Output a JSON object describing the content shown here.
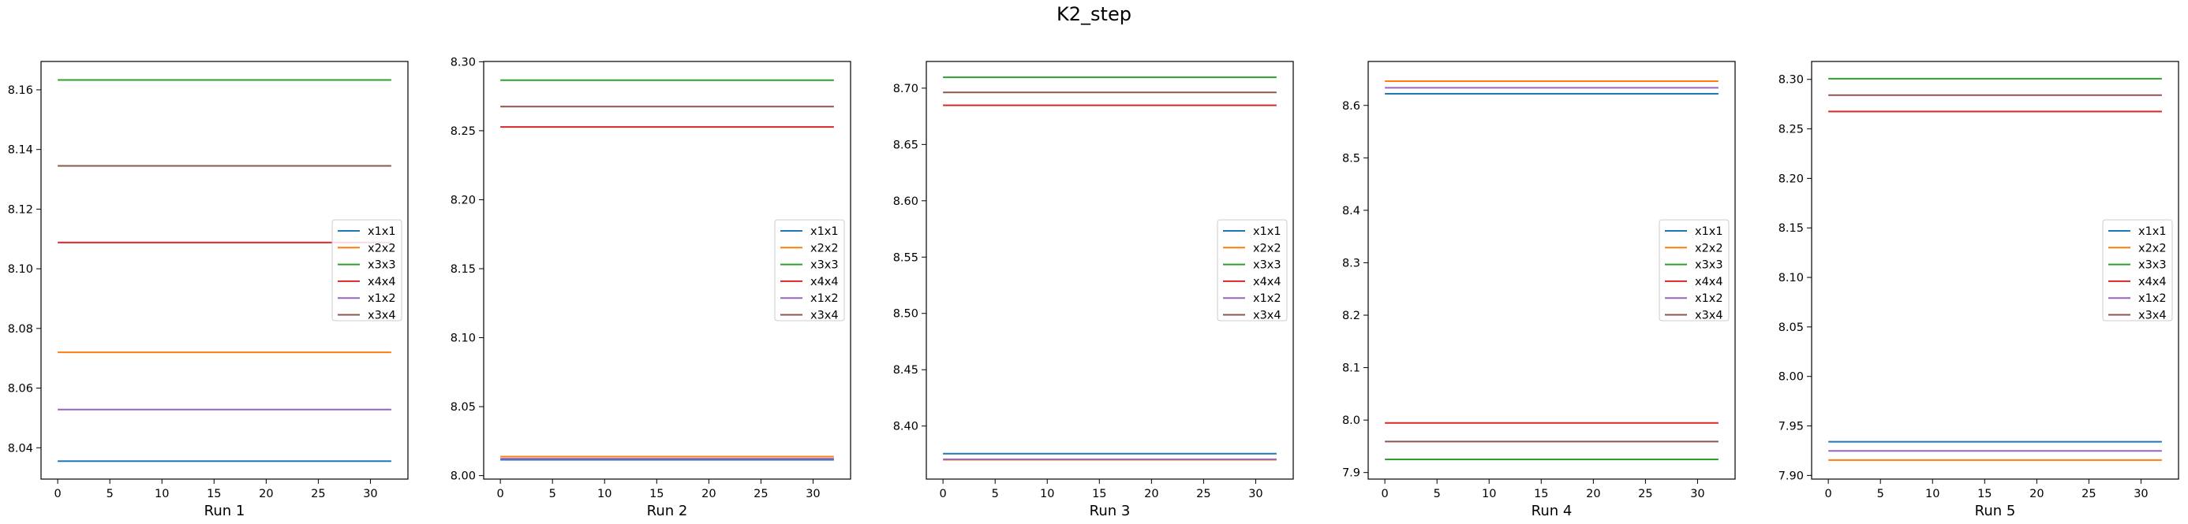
{
  "figure": {
    "title": "K2_step"
  },
  "legend_placement": "center-right",
  "colors": {
    "x1x1": "#1f77b4",
    "x2x2": "#ff7f0e",
    "x3x3": "#2ca02c",
    "x4x4": "#d62728",
    "x1x2": "#9467bd",
    "x3x4": "#8c564b"
  },
  "chart_data": [
    {
      "type": "line",
      "xlabel": "Run 1",
      "x": [
        0,
        32
      ],
      "xticks": [
        0,
        5,
        10,
        15,
        20,
        25,
        30
      ],
      "xlim": [
        -1.6,
        33.6
      ],
      "ylim": [
        8.0295,
        8.1695
      ],
      "yticks": [
        "8.04",
        "8.06",
        "8.08",
        "8.10",
        "8.12",
        "8.14",
        "8.16"
      ],
      "legend": [
        "x1x1",
        "x2x2",
        "x3x3",
        "x4x4",
        "x1x2",
        "x3x4"
      ],
      "series": [
        {
          "name": "x1x1",
          "values": [
            8.0355,
            8.0355
          ]
        },
        {
          "name": "x2x2",
          "values": [
            8.072,
            8.072
          ]
        },
        {
          "name": "x3x3",
          "values": [
            8.1633,
            8.1633
          ]
        },
        {
          "name": "x4x4",
          "values": [
            8.1088,
            8.1088
          ]
        },
        {
          "name": "x1x2",
          "values": [
            8.0528,
            8.0528
          ]
        },
        {
          "name": "x3x4",
          "values": [
            8.1345,
            8.1345
          ]
        }
      ]
    },
    {
      "type": "line",
      "xlabel": "Run 2",
      "x": [
        0,
        32
      ],
      "xticks": [
        0,
        5,
        10,
        15,
        20,
        25,
        30
      ],
      "xlim": [
        -1.6,
        33.6
      ],
      "ylim": [
        7.9975,
        8.3002
      ],
      "yticks": [
        "8.00",
        "8.05",
        "8.10",
        "8.15",
        "8.20",
        "8.25",
        "8.30"
      ],
      "legend": [
        "x1x1",
        "x2x2",
        "x3x3",
        "x4x4",
        "x1x2",
        "x3x4"
      ],
      "series": [
        {
          "name": "x1x1",
          "values": [
            8.0115,
            8.0115
          ]
        },
        {
          "name": "x2x2",
          "values": [
            8.0138,
            8.0138
          ]
        },
        {
          "name": "x3x3",
          "values": [
            8.2866,
            8.2866
          ]
        },
        {
          "name": "x4x4",
          "values": [
            8.2527,
            8.2527
          ]
        },
        {
          "name": "x1x2",
          "values": [
            8.0123,
            8.0123
          ]
        },
        {
          "name": "x3x4",
          "values": [
            8.2675,
            8.2675
          ]
        }
      ]
    },
    {
      "type": "line",
      "xlabel": "Run 3",
      "x": [
        0,
        32
      ],
      "xticks": [
        0,
        5,
        10,
        15,
        20,
        25,
        30
      ],
      "xlim": [
        -1.6,
        33.6
      ],
      "ylim": [
        8.3529,
        8.7237
      ],
      "yticks": [
        "8.40",
        "8.45",
        "8.50",
        "8.55",
        "8.60",
        "8.65",
        "8.70"
      ],
      "legend": [
        "x1x1",
        "x2x2",
        "x3x3",
        "x4x4",
        "x1x2",
        "x3x4"
      ],
      "series": [
        {
          "name": "x1x1",
          "values": [
            8.3755,
            8.3755
          ]
        },
        {
          "name": "x2x2",
          "values": [
            8.37,
            8.37
          ]
        },
        {
          "name": "x3x3",
          "values": [
            8.7096,
            8.7096
          ]
        },
        {
          "name": "x4x4",
          "values": [
            8.6848,
            8.6848
          ]
        },
        {
          "name": "x1x2",
          "values": [
            8.3705,
            8.3705
          ]
        },
        {
          "name": "x3x4",
          "values": [
            8.6962,
            8.6962
          ]
        }
      ]
    },
    {
      "type": "line",
      "xlabel": "Run 4",
      "x": [
        0,
        32
      ],
      "xticks": [
        0,
        5,
        10,
        15,
        20,
        25,
        30
      ],
      "xlim": [
        -1.6,
        33.6
      ],
      "ylim": [
        7.8875,
        8.6838
      ],
      "yticks": [
        "7.9",
        "8.0",
        "8.1",
        "8.2",
        "8.3",
        "8.4",
        "8.5",
        "8.6"
      ],
      "legend": [
        "x1x1",
        "x2x2",
        "x3x3",
        "x4x4",
        "x1x2",
        "x3x4"
      ],
      "series": [
        {
          "name": "x1x1",
          "values": [
            8.6222,
            8.6222
          ]
        },
        {
          "name": "x2x2",
          "values": [
            8.6462,
            8.6462
          ]
        },
        {
          "name": "x3x3",
          "values": [
            7.9251,
            7.9251
          ]
        },
        {
          "name": "x4x4",
          "values": [
            7.9946,
            7.9946
          ]
        },
        {
          "name": "x1x2",
          "values": [
            8.6336,
            8.6336
          ]
        },
        {
          "name": "x3x4",
          "values": [
            7.9591,
            7.9591
          ]
        }
      ]
    },
    {
      "type": "line",
      "xlabel": "Run 5",
      "x": [
        0,
        32
      ],
      "xticks": [
        0,
        5,
        10,
        15,
        20,
        25,
        30
      ],
      "xlim": [
        -1.6,
        33.6
      ],
      "ylim": [
        7.8963,
        8.3181
      ],
      "yticks": [
        "7.90",
        "7.95",
        "8.00",
        "8.05",
        "8.10",
        "8.15",
        "8.20",
        "8.25",
        "8.30"
      ],
      "legend": [
        "x1x1",
        "x2x2",
        "x3x3",
        "x4x4",
        "x1x2",
        "x3x4"
      ],
      "series": [
        {
          "name": "x1x1",
          "values": [
            7.934,
            7.934
          ]
        },
        {
          "name": "x2x2",
          "values": [
            7.9155,
            7.9155
          ]
        },
        {
          "name": "x3x3",
          "values": [
            8.3007,
            8.3007
          ]
        },
        {
          "name": "x4x4",
          "values": [
            8.2676,
            8.2676
          ]
        },
        {
          "name": "x1x2",
          "values": [
            7.9247,
            7.9247
          ]
        },
        {
          "name": "x3x4",
          "values": [
            8.2841,
            8.2841
          ]
        }
      ]
    }
  ]
}
